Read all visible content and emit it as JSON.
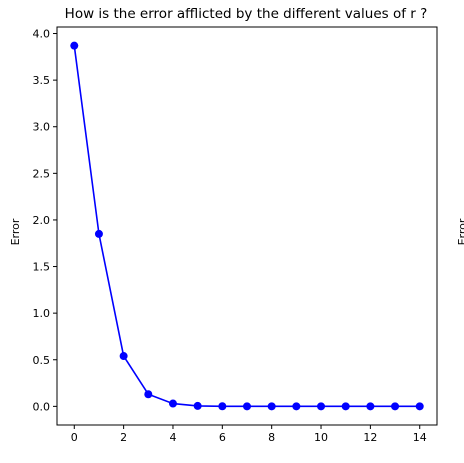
{
  "chart_data": {
    "type": "line",
    "title": "How is the error afflicted by the different values of r ?",
    "xlabel": "",
    "ylabel": "Error",
    "second_panel_ylabel": "Error",
    "x": [
      0,
      1,
      2,
      3,
      4,
      5,
      6,
      7,
      8,
      9,
      10,
      11,
      12,
      13,
      14
    ],
    "series": [
      {
        "values": [
          3.87,
          1.85,
          0.54,
          0.13,
          0.03,
          0.005,
          0.001,
          0.0,
          0.0,
          0.0,
          0.0,
          0.0,
          0.0,
          0.0,
          0.0
        ],
        "color": "#0000ff",
        "marker": "circle"
      }
    ],
    "xlim": [
      -0.7,
      14.7
    ],
    "ylim": [
      -0.2,
      4.07
    ],
    "xticks": [
      0,
      2,
      4,
      6,
      8,
      10,
      12,
      14
    ],
    "yticks": [
      0.0,
      0.5,
      1.0,
      1.5,
      2.0,
      2.5,
      3.0,
      3.5,
      4.0
    ],
    "xtick_labels": [
      "0",
      "2",
      "4",
      "6",
      "8",
      "10",
      "12",
      "14"
    ],
    "ytick_labels": [
      "0.0",
      "0.5",
      "1.0",
      "1.5",
      "2.0",
      "2.5",
      "3.0",
      "3.5",
      "4.0"
    ],
    "grid": false,
    "legend": "none"
  }
}
